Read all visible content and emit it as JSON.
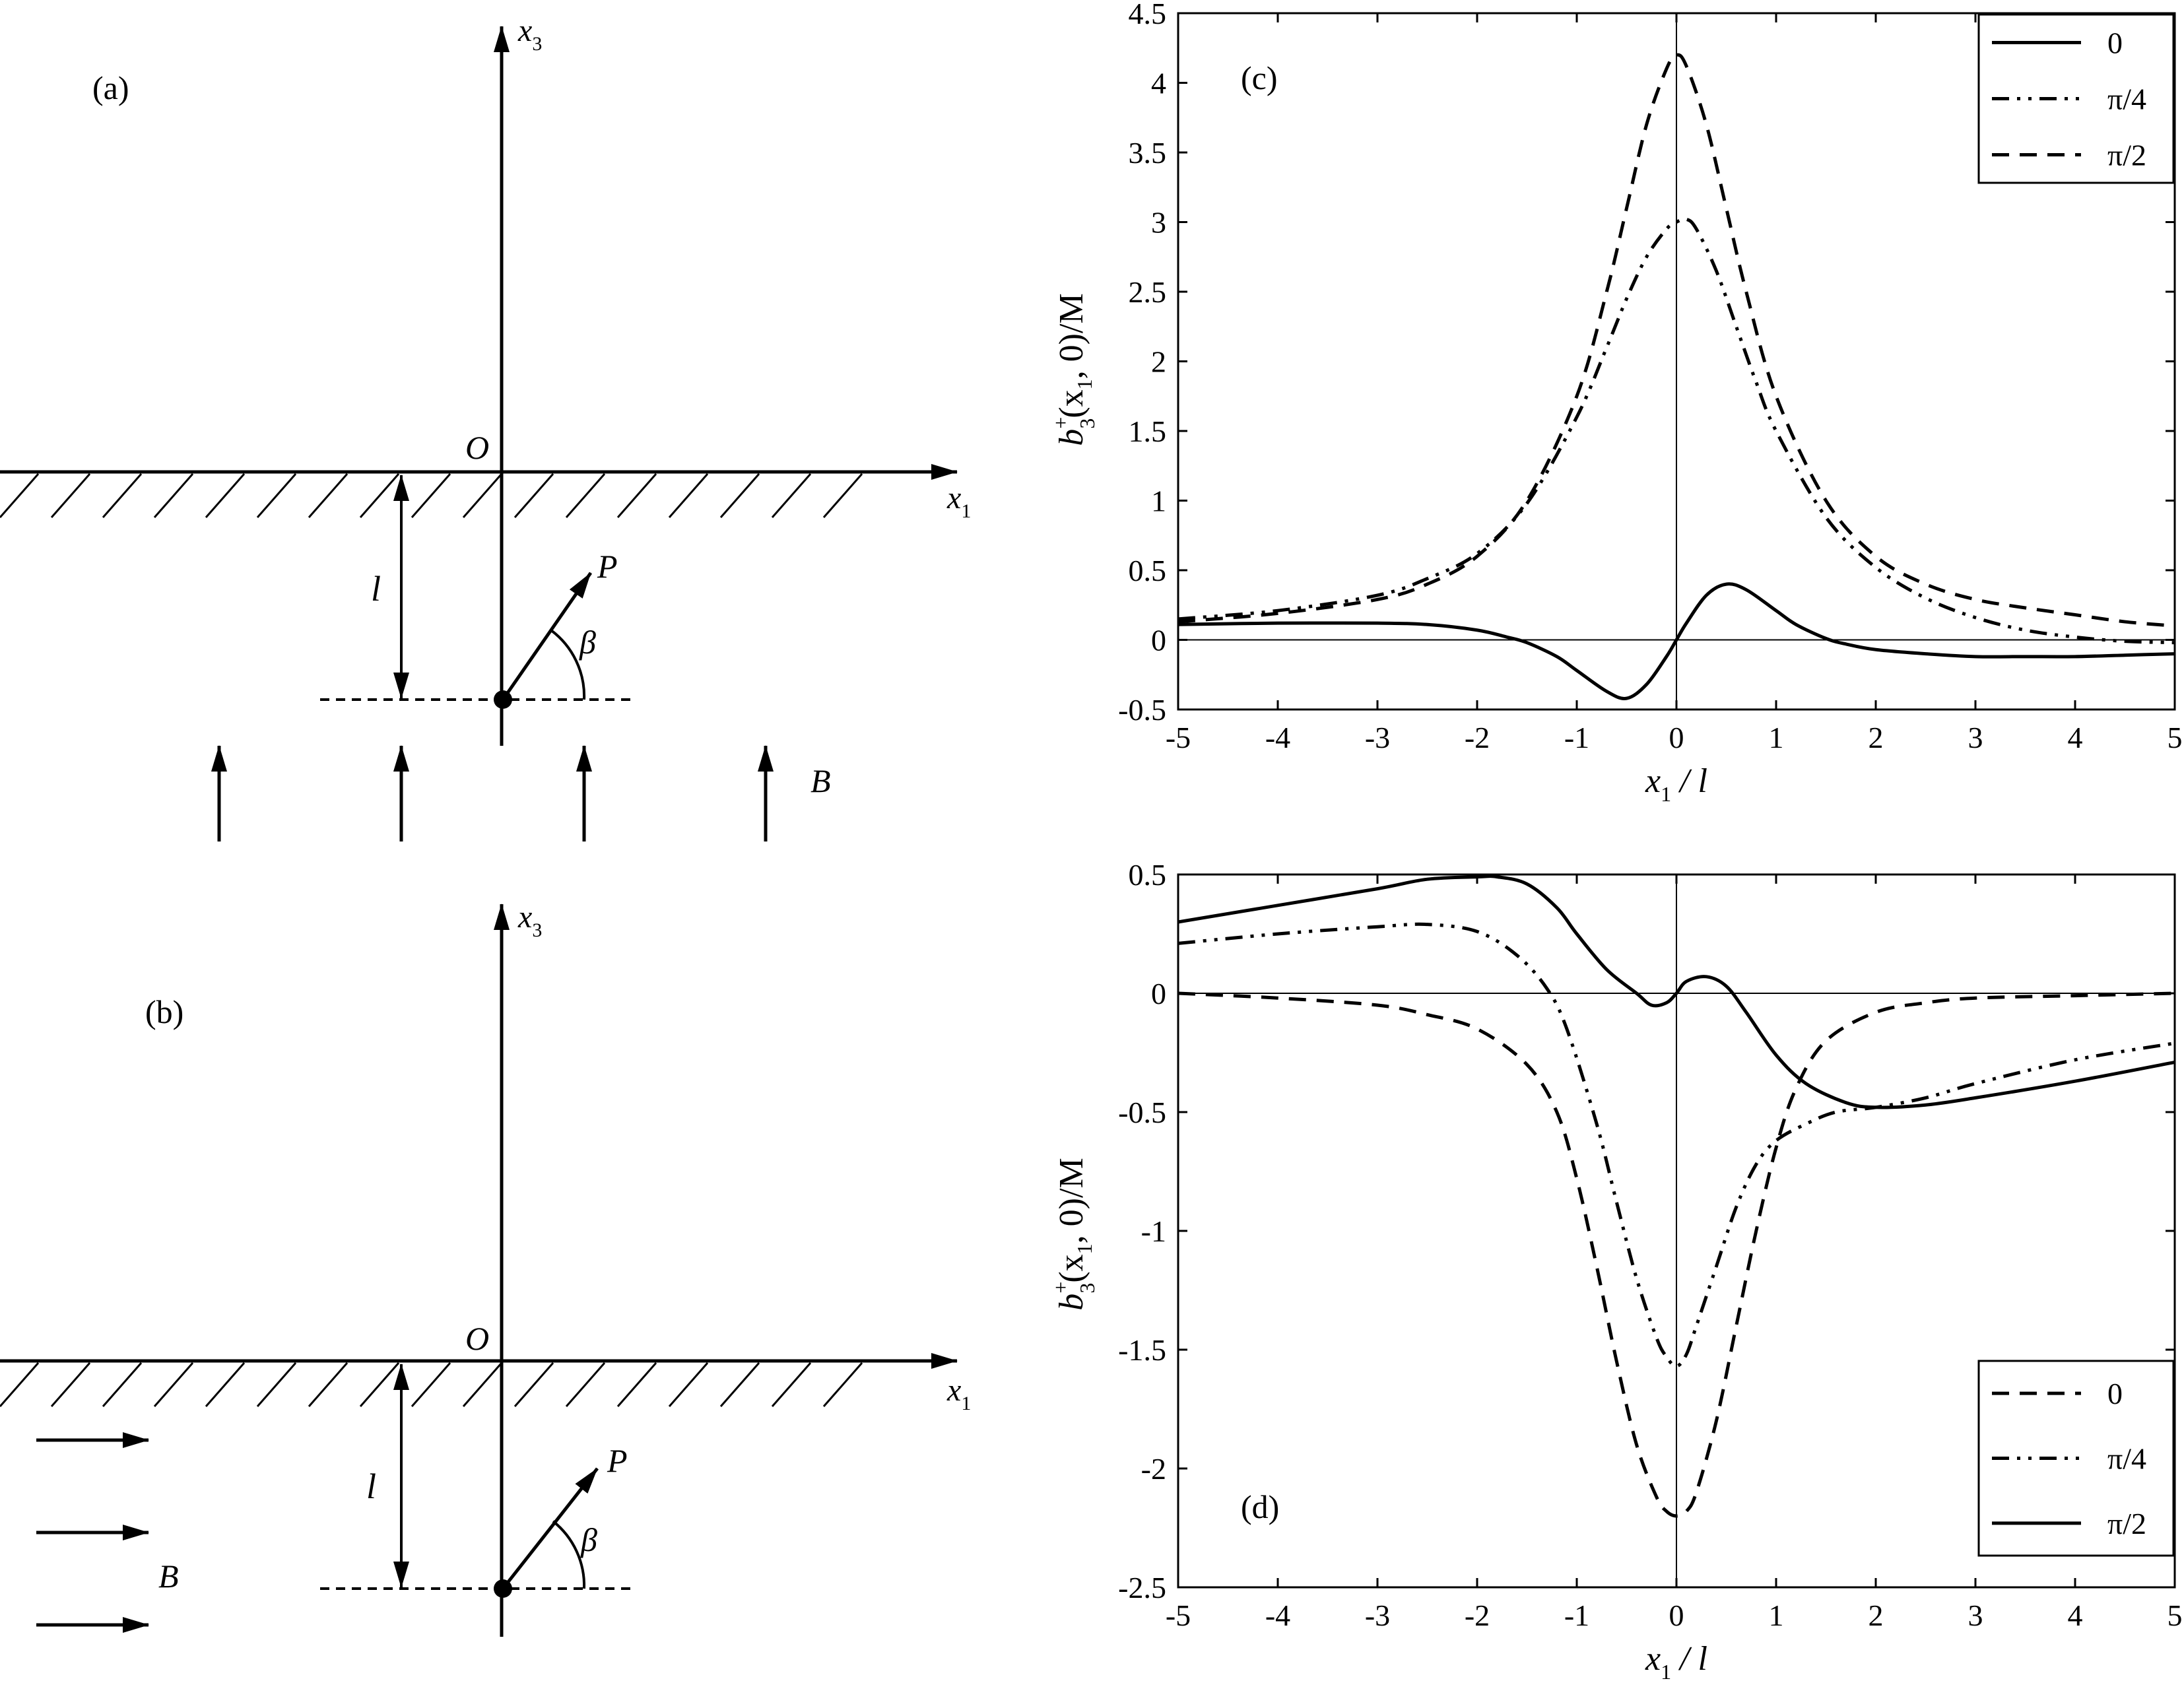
{
  "panels": {
    "a": {
      "label": "(a)",
      "axis_x": "x",
      "axis_x_sub": "1",
      "axis_y": "x",
      "axis_y_sub": "3",
      "origin": "O",
      "depth": "l",
      "force": "P",
      "angle": "β",
      "field": "B",
      "field_direction": "vertical"
    },
    "b": {
      "label": "(b)",
      "axis_x": "x",
      "axis_x_sub": "1",
      "axis_y": "x",
      "axis_y_sub": "3",
      "origin": "O",
      "depth": "l",
      "force": "P",
      "angle": "β",
      "field": "B",
      "field_direction": "horizontal"
    }
  },
  "axis_text": {
    "ylabel_main": "b",
    "ylabel_sup": "+",
    "ylabel_sub": "3",
    "ylabel_mid": "(x",
    "ylabel_sub2": "1",
    "ylabel_end": ", 0)/M",
    "xlabel_main": "x",
    "xlabel_sub": "1",
    "xlabel_end": " / l"
  },
  "chart_data": [
    {
      "type": "line",
      "panel_label": "(c)",
      "xlim": [
        -5,
        5
      ],
      "ylim": [
        -0.5,
        4.5
      ],
      "xticks": [
        "-5",
        "-4",
        "-3",
        "-2",
        "-1",
        "0",
        "1",
        "2",
        "3",
        "4",
        "5"
      ],
      "yticks": [
        "-0.5",
        "0",
        "0.5",
        "1",
        "1.5",
        "2",
        "2.5",
        "3",
        "3.5",
        "4",
        "4.5"
      ],
      "legend_position": "top-right",
      "series": [
        {
          "name": "0",
          "style": "solid",
          "x": [
            -5,
            -4,
            -3,
            -2.5,
            -2,
            -1.7,
            -1.5,
            -1.2,
            -1,
            -0.7,
            -0.5,
            -0.3,
            -0.1,
            0,
            0.1,
            0.3,
            0.5,
            0.7,
            1,
            1.2,
            1.5,
            1.7,
            2,
            2.5,
            3,
            3.5,
            4,
            4.5,
            5
          ],
          "y": [
            0.11,
            0.12,
            0.12,
            0.11,
            0.07,
            0.02,
            -0.02,
            -0.12,
            -0.22,
            -0.37,
            -0.42,
            -0.32,
            -0.12,
            0,
            0.12,
            0.32,
            0.4,
            0.36,
            0.21,
            0.11,
            0.01,
            -0.03,
            -0.07,
            -0.1,
            -0.12,
            -0.12,
            -0.12,
            -0.11,
            -0.1
          ]
        },
        {
          "name": "π/4",
          "style": "dashdotdot",
          "x": [
            -5,
            -4,
            -3,
            -2.5,
            -2,
            -1.5,
            -1,
            -0.7,
            -0.5,
            -0.3,
            -0.1,
            0,
            0.1,
            0.2,
            0.4,
            0.6,
            0.8,
            1,
            1.5,
            2,
            2.5,
            3,
            3.5,
            4,
            4.5,
            5
          ],
          "y": [
            0.15,
            0.21,
            0.32,
            0.44,
            0.62,
            0.98,
            1.6,
            2.1,
            2.45,
            2.75,
            2.95,
            3.0,
            3.02,
            2.95,
            2.65,
            2.25,
            1.85,
            1.5,
            0.88,
            0.52,
            0.3,
            0.16,
            0.07,
            0.02,
            -0.01,
            -0.02
          ]
        },
        {
          "name": "π/2",
          "style": "dashed",
          "x": [
            -5,
            -4,
            -3,
            -2.5,
            -2,
            -1.5,
            -1,
            -0.7,
            -0.5,
            -0.3,
            -0.1,
            0,
            0.1,
            0.3,
            0.5,
            0.7,
            1,
            1.5,
            2,
            2.5,
            3,
            3.5,
            4,
            4.5,
            5
          ],
          "y": [
            0.13,
            0.19,
            0.29,
            0.4,
            0.6,
            1.0,
            1.75,
            2.5,
            3.1,
            3.7,
            4.1,
            4.2,
            4.12,
            3.7,
            3.1,
            2.5,
            1.75,
            1.0,
            0.6,
            0.4,
            0.29,
            0.23,
            0.18,
            0.13,
            0.1
          ]
        }
      ]
    },
    {
      "type": "line",
      "panel_label": "(d)",
      "xlim": [
        -5,
        5
      ],
      "ylim": [
        -2.5,
        0.5
      ],
      "xticks": [
        "-5",
        "-4",
        "-3",
        "-2",
        "-1",
        "0",
        "1",
        "2",
        "3",
        "4",
        "5"
      ],
      "yticks": [
        "-2.5",
        "-2",
        "-1.5",
        "-1",
        "-0.5",
        "0",
        "0.5"
      ],
      "legend_position": "bottom-right",
      "series": [
        {
          "name": "0",
          "style": "dashed",
          "x": [
            -5,
            -4,
            -3,
            -2.5,
            -2,
            -1.5,
            -1.2,
            -1,
            -0.8,
            -0.6,
            -0.4,
            -0.2,
            -0.1,
            0,
            0.1,
            0.2,
            0.4,
            0.6,
            0.8,
            1,
            1.2,
            1.5,
            2,
            2.5,
            3,
            4,
            5
          ],
          "y": [
            0,
            -0.02,
            -0.05,
            -0.09,
            -0.15,
            -0.3,
            -0.5,
            -0.78,
            -1.15,
            -1.55,
            -1.9,
            -2.12,
            -2.18,
            -2.2,
            -2.18,
            -2.1,
            -1.8,
            -1.4,
            -1.0,
            -0.65,
            -0.4,
            -0.2,
            -0.08,
            -0.04,
            -0.02,
            -0.01,
            0
          ]
        },
        {
          "name": "π/4",
          "style": "dashdotdot",
          "x": [
            -5,
            -4,
            -3,
            -2.5,
            -2,
            -1.6,
            -1.3,
            -1.1,
            -0.8,
            -0.6,
            -0.4,
            -0.2,
            -0.1,
            0,
            0.1,
            0.2,
            0.4,
            0.6,
            0.8,
            1,
            1.3,
            1.6,
            2,
            2.5,
            3,
            4,
            5
          ],
          "y": [
            0.21,
            0.25,
            0.28,
            0.29,
            0.26,
            0.16,
            0.02,
            -0.15,
            -0.55,
            -0.88,
            -1.2,
            -1.45,
            -1.53,
            -1.57,
            -1.52,
            -1.4,
            -1.15,
            -0.9,
            -0.72,
            -0.62,
            -0.55,
            -0.5,
            -0.48,
            -0.44,
            -0.38,
            -0.28,
            -0.21
          ]
        },
        {
          "name": "π/2",
          "style": "solid",
          "x": [
            -5,
            -4,
            -3,
            -2.5,
            -2,
            -1.8,
            -1.5,
            -1.2,
            -1,
            -0.7,
            -0.4,
            -0.25,
            -0.1,
            0,
            0.1,
            0.3,
            0.5,
            0.7,
            1,
            1.3,
            1.7,
            2,
            2.5,
            3,
            4,
            5
          ],
          "y": [
            0.3,
            0.37,
            0.44,
            0.48,
            0.49,
            0.49,
            0.46,
            0.36,
            0.25,
            0.1,
            0.0,
            -0.05,
            -0.04,
            0.0,
            0.05,
            0.07,
            0.03,
            -0.08,
            -0.26,
            -0.38,
            -0.46,
            -0.48,
            -0.47,
            -0.44,
            -0.37,
            -0.29
          ]
        }
      ]
    }
  ]
}
